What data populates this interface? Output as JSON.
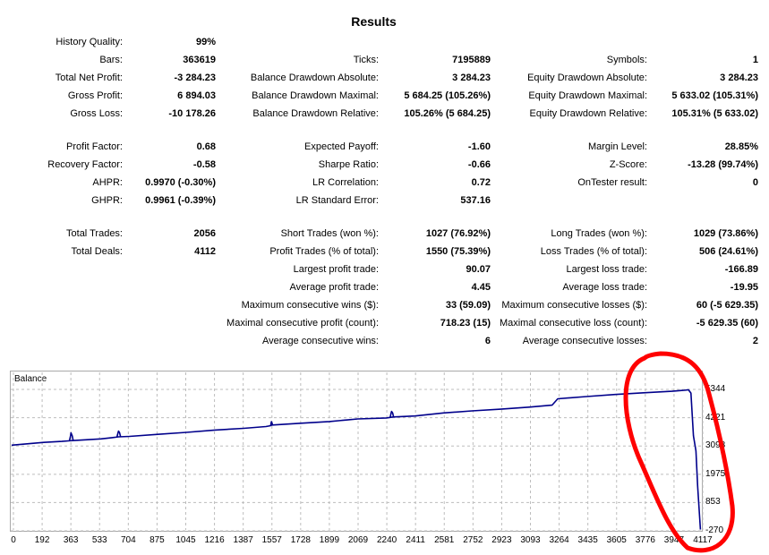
{
  "report": {
    "title": "Results",
    "rows": [
      [
        [
          "History Quality:",
          "99%"
        ],
        null,
        null
      ],
      [
        [
          "Bars:",
          "363619"
        ],
        [
          "Ticks:",
          "7195889"
        ],
        [
          "Symbols:",
          "1"
        ]
      ],
      [
        [
          "Total Net Profit:",
          "-3 284.23"
        ],
        [
          "Balance Drawdown Absolute:",
          "3 284.23"
        ],
        [
          "Equity Drawdown Absolute:",
          "3 284.23"
        ]
      ],
      [
        [
          "Gross Profit:",
          "6 894.03"
        ],
        [
          "Balance Drawdown Maximal:",
          "5 684.25 (105.26%)"
        ],
        [
          "Equity Drawdown Maximal:",
          "5 633.02 (105.31%)"
        ]
      ],
      [
        [
          "Gross Loss:",
          "-10 178.26"
        ],
        [
          "Balance Drawdown Relative:",
          "105.26% (5 684.25)"
        ],
        [
          "Equity Drawdown Relative:",
          "105.31% (5 633.02)"
        ]
      ],
      [
        [
          "Profit Factor:",
          "0.68"
        ],
        [
          "Expected Payoff:",
          "-1.60"
        ],
        [
          "Margin Level:",
          "28.85%"
        ]
      ],
      [
        [
          "Recovery Factor:",
          "-0.58"
        ],
        [
          "Sharpe Ratio:",
          "-0.66"
        ],
        [
          "Z-Score:",
          "-13.28 (99.74%)"
        ]
      ],
      [
        [
          "AHPR:",
          "0.9970 (-0.30%)"
        ],
        [
          "LR Correlation:",
          "0.72"
        ],
        [
          "OnTester result:",
          "0"
        ]
      ],
      [
        [
          "GHPR:",
          "0.9961 (-0.39%)"
        ],
        [
          "LR Standard Error:",
          "537.16"
        ],
        null
      ],
      [
        [
          "Total Trades:",
          "2056"
        ],
        [
          "Short Trades (won %):",
          "1027 (76.92%)"
        ],
        [
          "Long Trades (won %):",
          "1029 (73.86%)"
        ]
      ],
      [
        [
          "Total Deals:",
          "4112"
        ],
        [
          "Profit Trades (% of total):",
          "1550 (75.39%)"
        ],
        [
          "Loss Trades (% of total):",
          "506 (24.61%)"
        ]
      ],
      [
        null,
        [
          "Largest profit trade:",
          "90.07"
        ],
        [
          "Largest loss trade:",
          "-166.89"
        ]
      ],
      [
        null,
        [
          "Average profit trade:",
          "4.45"
        ],
        [
          "Average loss trade:",
          "-19.95"
        ]
      ],
      [
        null,
        [
          "Maximum consecutive wins ($):",
          "33 (59.09)"
        ],
        [
          "Maximum consecutive losses ($):",
          "60 (-5 629.35)"
        ]
      ],
      [
        null,
        [
          "Maximal consecutive profit (count):",
          "718.23 (15)"
        ],
        [
          "Maximal consecutive loss (count):",
          "-5 629.35 (60)"
        ]
      ],
      [
        null,
        [
          "Average consecutive wins:",
          "6"
        ],
        [
          "Average consecutive losses:",
          "2"
        ]
      ]
    ]
  },
  "chart_data": {
    "type": "line",
    "title": "Balance",
    "x_ticks": [
      "0",
      "192",
      "363",
      "533",
      "704",
      "875",
      "1045",
      "1216",
      "1387",
      "1557",
      "1728",
      "1899",
      "2069",
      "2240",
      "2411",
      "2581",
      "2752",
      "2923",
      "3093",
      "3264",
      "3435",
      "3605",
      "3776",
      "3947",
      "4117"
    ],
    "y_ticks": [
      "5344",
      "4221",
      "3098",
      "1975",
      "853",
      "-270"
    ],
    "xlim": [
      0,
      4120
    ],
    "ylim": [
      -270,
      5344
    ],
    "series": [
      {
        "color": "#00008b",
        "x": [
          0,
          192,
          300,
          340,
          363,
          533,
          600,
          640,
          704,
          875,
          1045,
          1216,
          1387,
          1520,
          1545,
          1557,
          1728,
          1899,
          2000,
          2069,
          2240,
          2280,
          2411,
          2581,
          2752,
          2923,
          3093,
          3230,
          3264,
          3435,
          3605,
          3776,
          3947,
          4020,
          4045,
          4060,
          4075,
          4090,
          4100,
          4117
        ],
        "y": [
          3130,
          3240,
          3280,
          3300,
          3310,
          3380,
          3430,
          3460,
          3480,
          3560,
          3640,
          3730,
          3800,
          3870,
          3900,
          3930,
          4000,
          4070,
          4130,
          4170,
          4210,
          4250,
          4290,
          4410,
          4490,
          4560,
          4640,
          4720,
          4970,
          5060,
          5140,
          5210,
          5270,
          5310,
          5330,
          5200,
          3500,
          2900,
          1500,
          -220
        ]
      },
      {
        "color": "#00008b",
        "x": [
          345,
          352,
          355,
          362,
          368
        ],
        "y": [
          3300,
          3500,
          3620,
          3500,
          3305
        ]
      },
      {
        "color": "#00008b",
        "x": [
          630,
          636,
          639,
          645,
          651
        ],
        "y": [
          3460,
          3630,
          3690,
          3630,
          3465
        ]
      },
      {
        "color": "#00008b",
        "x": [
          1548,
          1551,
          1553,
          1556,
          1559
        ],
        "y": [
          3900,
          4020,
          4060,
          4020,
          3930
        ]
      },
      {
        "color": "#00008b",
        "x": [
          2262,
          2268,
          2271,
          2277,
          2283
        ],
        "y": [
          4230,
          4410,
          4470,
          4410,
          4240
        ]
      }
    ],
    "annotation_color": "#ff0000"
  }
}
